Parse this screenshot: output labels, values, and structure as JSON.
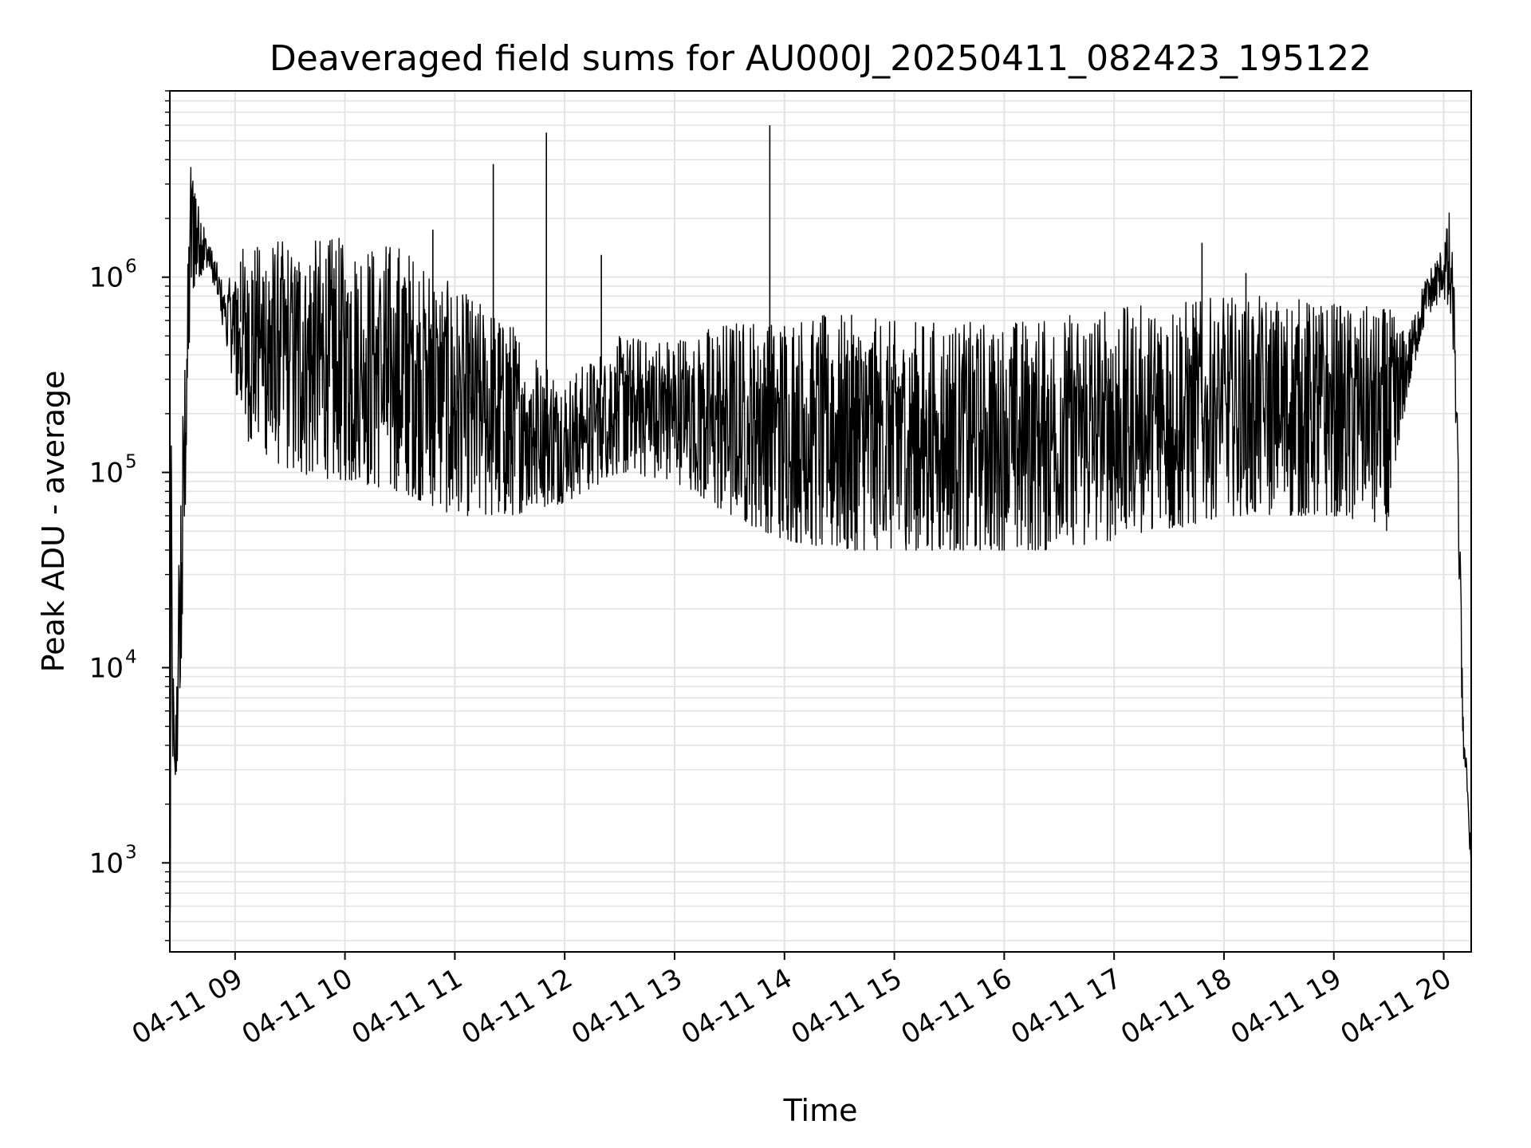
{
  "chart_data": {
    "type": "line",
    "title": "Deaveraged field sums for AU000J_20250411_082423_195122",
    "xlabel": "Time",
    "ylabel": "Peak ADU - average",
    "y_scale": "log",
    "ylim": [
      350,
      9000000
    ],
    "xlim": [
      "2025-04-11 08:24:23",
      "2025-04-11 20:15:00"
    ],
    "grid": true,
    "line_color": "#000000",
    "x_ticks": [
      {
        "time": "2025-04-11 09:00",
        "label": "04-11 09"
      },
      {
        "time": "2025-04-11 10:00",
        "label": "04-11 10"
      },
      {
        "time": "2025-04-11 11:00",
        "label": "04-11 11"
      },
      {
        "time": "2025-04-11 12:00",
        "label": "04-11 12"
      },
      {
        "time": "2025-04-11 13:00",
        "label": "04-11 13"
      },
      {
        "time": "2025-04-11 14:00",
        "label": "04-11 14"
      },
      {
        "time": "2025-04-11 15:00",
        "label": "04-11 15"
      },
      {
        "time": "2025-04-11 16:00",
        "label": "04-11 16"
      },
      {
        "time": "2025-04-11 17:00",
        "label": "04-11 17"
      },
      {
        "time": "2025-04-11 18:00",
        "label": "04-11 18"
      },
      {
        "time": "2025-04-11 19:00",
        "label": "04-11 19"
      },
      {
        "time": "2025-04-11 20:00",
        "label": "04-11 20"
      }
    ],
    "y_ticks": [
      {
        "value": 1000,
        "base": "10",
        "exp": "3"
      },
      {
        "value": 10000,
        "base": "10",
        "exp": "4"
      },
      {
        "value": 100000,
        "base": "10",
        "exp": "5"
      },
      {
        "value": 1000000,
        "base": "10",
        "exp": "6"
      }
    ],
    "series": [
      {
        "envelope": [
          {
            "time": "2025-04-11 08:24:23",
            "low": 380,
            "high": 400
          },
          {
            "time": "2025-04-11 08:25:00",
            "low": 600,
            "high": 220000
          },
          {
            "time": "2025-04-11 08:27:00",
            "low": 2500,
            "high": 3000
          },
          {
            "time": "2025-04-11 08:30:00",
            "low": 3500,
            "high": 90000
          },
          {
            "time": "2025-04-11 08:34:00",
            "low": 200000,
            "high": 1000000
          },
          {
            "time": "2025-04-11 08:36:00",
            "low": 800000,
            "high": 5000000
          },
          {
            "time": "2025-04-11 08:40:00",
            "low": 1000000,
            "high": 2500000
          },
          {
            "time": "2025-04-11 08:46:00",
            "low": 1100000,
            "high": 1500000
          },
          {
            "time": "2025-04-11 08:55:00",
            "low": 450000,
            "high": 900000
          },
          {
            "time": "2025-04-11 09:05:00",
            "low": 150000,
            "high": 1500000
          },
          {
            "time": "2025-04-11 09:30:00",
            "low": 100000,
            "high": 1600000
          },
          {
            "time": "2025-04-11 10:00:00",
            "low": 90000,
            "high": 1600000
          },
          {
            "time": "2025-04-11 10:30:00",
            "low": 80000,
            "high": 1500000
          },
          {
            "time": "2025-04-11 11:00:00",
            "low": 60000,
            "high": 900000
          },
          {
            "time": "2025-04-11 11:30:00",
            "low": 60000,
            "high": 600000
          },
          {
            "time": "2025-04-11 12:00:00",
            "low": 70000,
            "high": 300000
          },
          {
            "time": "2025-04-11 12:30:00",
            "low": 100000,
            "high": 500000
          },
          {
            "time": "2025-04-11 13:00:00",
            "low": 90000,
            "high": 500000
          },
          {
            "time": "2025-04-11 13:30:00",
            "low": 60000,
            "high": 600000
          },
          {
            "time": "2025-04-11 14:00:00",
            "low": 45000,
            "high": 650000
          },
          {
            "time": "2025-04-11 14:30:00",
            "low": 40000,
            "high": 650000
          },
          {
            "time": "2025-04-11 15:00:00",
            "low": 40000,
            "high": 600000
          },
          {
            "time": "2025-04-11 15:30:00",
            "low": 40000,
            "high": 600000
          },
          {
            "time": "2025-04-11 16:00:00",
            "low": 40000,
            "high": 600000
          },
          {
            "time": "2025-04-11 16:30:00",
            "low": 40000,
            "high": 650000
          },
          {
            "time": "2025-04-11 17:00:00",
            "low": 45000,
            "high": 700000
          },
          {
            "time": "2025-04-11 17:30:00",
            "low": 50000,
            "high": 750000
          },
          {
            "time": "2025-04-11 18:00:00",
            "low": 60000,
            "high": 800000
          },
          {
            "time": "2025-04-11 18:30:00",
            "low": 60000,
            "high": 800000
          },
          {
            "time": "2025-04-11 19:00:00",
            "low": 60000,
            "high": 750000
          },
          {
            "time": "2025-04-11 19:30:00",
            "low": 50000,
            "high": 700000
          },
          {
            "time": "2025-04-11 19:40:00",
            "low": 250000,
            "high": 500000
          },
          {
            "time": "2025-04-11 19:50:00",
            "low": 600000,
            "high": 1000000
          },
          {
            "time": "2025-04-11 20:00:00",
            "low": 800000,
            "high": 1500000
          },
          {
            "time": "2025-04-11 20:03:00",
            "low": 600000,
            "high": 2200000
          },
          {
            "time": "2025-04-11 20:06:00",
            "low": 300000,
            "high": 900000
          },
          {
            "time": "2025-04-11 20:09:00",
            "low": 12000,
            "high": 40000
          },
          {
            "time": "2025-04-11 20:11:00",
            "low": 3000,
            "high": 4500
          },
          {
            "time": "2025-04-11 20:13:00",
            "low": 2000,
            "high": 3000
          },
          {
            "time": "2025-04-11 20:15:00",
            "low": 800,
            "high": 1200
          }
        ],
        "spikes": [
          {
            "time": "2025-04-11 11:21:00",
            "value": 3800000
          },
          {
            "time": "2025-04-11 11:50:00",
            "value": 5500000
          },
          {
            "time": "2025-04-11 13:52:00",
            "value": 6000000
          },
          {
            "time": "2025-04-11 09:03:00",
            "value": 1200000
          },
          {
            "time": "2025-04-11 10:48:00",
            "value": 1750000
          },
          {
            "time": "2025-04-11 12:20:00",
            "value": 1300000
          },
          {
            "time": "2025-04-11 17:48:00",
            "value": 1500000
          },
          {
            "time": "2025-04-11 18:12:00",
            "value": 1050000
          }
        ]
      }
    ]
  }
}
